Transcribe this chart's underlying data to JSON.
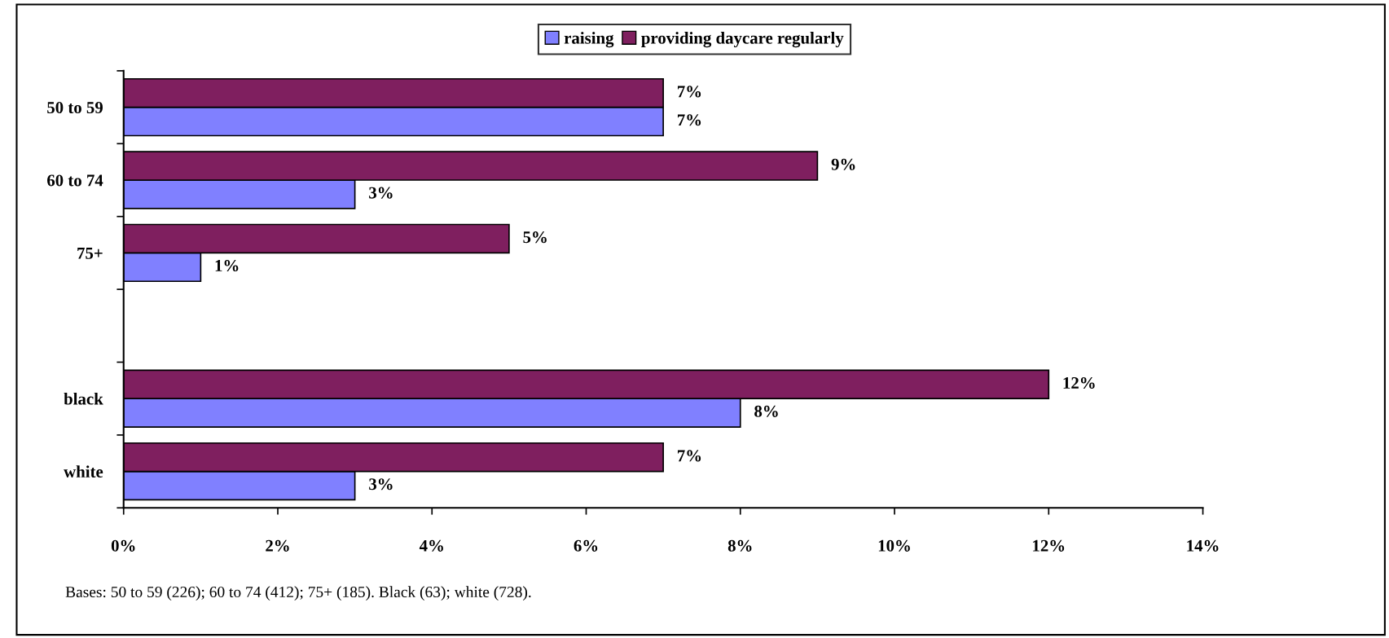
{
  "chart_data": {
    "type": "bar",
    "orientation": "horizontal",
    "categories": [
      "50 to 59",
      "60 to 74",
      "75+",
      null,
      "black",
      "white"
    ],
    "series": [
      {
        "name": "raising",
        "color": "#8080ff",
        "values": [
          7,
          3,
          1,
          null,
          8,
          3
        ],
        "value_labels": [
          "7%",
          "3%",
          "1%",
          null,
          "8%",
          "3%"
        ]
      },
      {
        "name": "providing daycare regularly",
        "color": "#7f1f5f",
        "values": [
          7,
          9,
          5,
          null,
          12,
          7
        ],
        "value_labels": [
          "7%",
          "9%",
          "5%",
          null,
          "12%",
          "7%"
        ]
      }
    ],
    "xlim": [
      0,
      14
    ],
    "xticks": [
      {
        "value": 0,
        "label": "0%"
      },
      {
        "value": 2,
        "label": "2%"
      },
      {
        "value": 4,
        "label": "4%"
      },
      {
        "value": 6,
        "label": "6%"
      },
      {
        "value": 8,
        "label": "8%"
      },
      {
        "value": 10,
        "label": "10%"
      },
      {
        "value": 12,
        "label": "12%"
      },
      {
        "value": 14,
        "label": "14%"
      }
    ],
    "legend": "top",
    "grid": false,
    "annotations": [
      "Bases: 50 to 59 (226); 60 to 74 (412); 75+ (185). Black (63); white (728)."
    ]
  }
}
